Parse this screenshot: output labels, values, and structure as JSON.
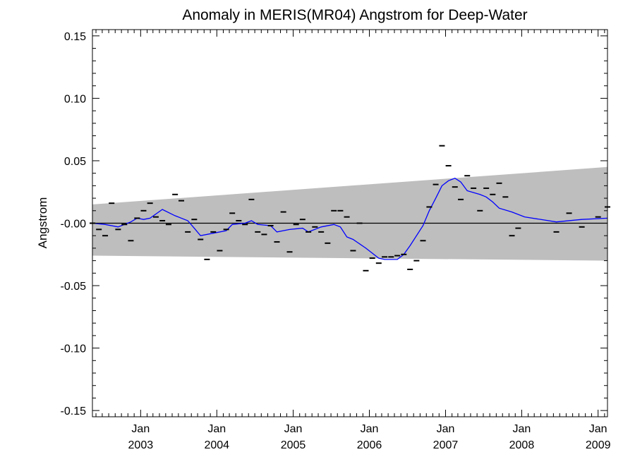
{
  "chart_data": {
    "type": "line",
    "title": "Anomaly in MERIS(MR04) Angstrom for Deep-Water",
    "xlabel": "",
    "ylabel": "Angstrom",
    "xlim": [
      "2002-05-15",
      "2009-02-15"
    ],
    "ylim": [
      -0.155,
      0.155
    ],
    "y_ticks": [
      0.15,
      0.1,
      0.05,
      0.0,
      -0.05,
      -0.1,
      -0.15
    ],
    "y_tick_labels": [
      "0.15",
      "0.10",
      "0.05",
      "-0.00",
      "-0.05",
      "-0.10",
      "-0.15"
    ],
    "x_ticks": [
      {
        "date": "2003-01-01",
        "month": "Jan",
        "year": "2003"
      },
      {
        "date": "2004-01-01",
        "month": "Jan",
        "year": "2004"
      },
      {
        "date": "2005-01-01",
        "month": "Jan",
        "year": "2005"
      },
      {
        "date": "2006-01-01",
        "month": "Jan",
        "year": "2006"
      },
      {
        "date": "2007-01-01",
        "month": "Jan",
        "year": "2007"
      },
      {
        "date": "2008-01-01",
        "month": "Jan",
        "year": "2008"
      },
      {
        "date": "2009-01-01",
        "month": "Jan",
        "year": "2009"
      }
    ],
    "grid": false,
    "zero_line": true,
    "uncertainty_band": {
      "color": "#bebebe",
      "start": {
        "date": "2002-05-15",
        "upper": 0.015,
        "lower": -0.026
      },
      "end": {
        "date": "2009-02-15",
        "upper": 0.045,
        "lower": -0.03
      }
    },
    "series": [
      {
        "kind": "monthly_markers",
        "color": "#000000",
        "points": [
          {
            "x": "2002-05-15",
            "y": 0.0
          },
          {
            "x": "2002-06-15",
            "y": -0.005
          },
          {
            "x": "2002-07-15",
            "y": -0.01
          },
          {
            "x": "2002-08-15",
            "y": 0.016
          },
          {
            "x": "2002-09-15",
            "y": -0.005
          },
          {
            "x": "2002-10-15",
            "y": -0.001
          },
          {
            "x": "2002-11-15",
            "y": -0.014
          },
          {
            "x": "2002-12-15",
            "y": 0.004
          },
          {
            "x": "2003-01-15",
            "y": 0.01
          },
          {
            "x": "2003-02-15",
            "y": 0.016
          },
          {
            "x": "2003-03-15",
            "y": 0.005
          },
          {
            "x": "2003-04-15",
            "y": 0.002
          },
          {
            "x": "2003-05-15",
            "y": -0.001
          },
          {
            "x": "2003-06-15",
            "y": 0.023
          },
          {
            "x": "2003-07-15",
            "y": 0.018
          },
          {
            "x": "2003-08-15",
            "y": -0.007
          },
          {
            "x": "2003-09-15",
            "y": 0.003
          },
          {
            "x": "2003-10-15",
            "y": -0.013
          },
          {
            "x": "2003-11-15",
            "y": -0.029
          },
          {
            "x": "2003-12-15",
            "y": -0.007
          },
          {
            "x": "2004-01-15",
            "y": -0.022
          },
          {
            "x": "2004-02-15",
            "y": -0.005
          },
          {
            "x": "2004-03-15",
            "y": 0.008
          },
          {
            "x": "2004-04-15",
            "y": 0.002
          },
          {
            "x": "2004-05-15",
            "y": -0.001
          },
          {
            "x": "2004-06-15",
            "y": 0.019
          },
          {
            "x": "2004-07-15",
            "y": -0.007
          },
          {
            "x": "2004-08-15",
            "y": -0.009
          },
          {
            "x": "2004-09-15",
            "y": -0.002
          },
          {
            "x": "2004-10-15",
            "y": -0.015
          },
          {
            "x": "2004-11-15",
            "y": 0.009
          },
          {
            "x": "2004-12-15",
            "y": -0.023
          },
          {
            "x": "2005-01-15",
            "y": -0.001
          },
          {
            "x": "2005-02-15",
            "y": 0.003
          },
          {
            "x": "2005-03-15",
            "y": -0.007
          },
          {
            "x": "2005-04-15",
            "y": -0.003
          },
          {
            "x": "2005-05-15",
            "y": -0.007
          },
          {
            "x": "2005-06-15",
            "y": -0.016
          },
          {
            "x": "2005-07-15",
            "y": 0.01
          },
          {
            "x": "2005-08-15",
            "y": 0.01
          },
          {
            "x": "2005-09-15",
            "y": 0.005
          },
          {
            "x": "2005-10-15",
            "y": -0.022
          },
          {
            "x": "2005-11-15",
            "y": 0.0
          },
          {
            "x": "2005-12-15",
            "y": -0.038
          },
          {
            "x": "2006-01-15",
            "y": -0.028
          },
          {
            "x": "2006-02-15",
            "y": -0.032
          },
          {
            "x": "2006-03-15",
            "y": -0.027
          },
          {
            "x": "2006-04-15",
            "y": -0.027
          },
          {
            "x": "2006-05-15",
            "y": -0.026
          },
          {
            "x": "2006-06-15",
            "y": -0.025
          },
          {
            "x": "2006-07-15",
            "y": -0.037
          },
          {
            "x": "2006-08-15",
            "y": -0.03
          },
          {
            "x": "2006-09-15",
            "y": -0.014
          },
          {
            "x": "2006-10-15",
            "y": 0.013
          },
          {
            "x": "2006-11-15",
            "y": 0.031
          },
          {
            "x": "2006-12-15",
            "y": 0.062
          },
          {
            "x": "2007-01-15",
            "y": 0.046
          },
          {
            "x": "2007-02-15",
            "y": 0.029
          },
          {
            "x": "2007-03-15",
            "y": 0.019
          },
          {
            "x": "2007-04-15",
            "y": 0.038
          },
          {
            "x": "2007-05-15",
            "y": 0.028
          },
          {
            "x": "2007-06-15",
            "y": 0.01
          },
          {
            "x": "2007-07-15",
            "y": 0.028
          },
          {
            "x": "2007-08-15",
            "y": 0.023
          },
          {
            "x": "2007-09-15",
            "y": 0.032
          },
          {
            "x": "2007-10-15",
            "y": 0.021
          },
          {
            "x": "2007-11-15",
            "y": -0.01
          },
          {
            "x": "2007-12-15",
            "y": -0.004
          },
          {
            "x": "2008-06-15",
            "y": -0.007
          },
          {
            "x": "2008-08-15",
            "y": 0.008
          },
          {
            "x": "2008-10-15",
            "y": -0.003
          },
          {
            "x": "2009-01-01",
            "y": 0.005
          },
          {
            "x": "2009-02-15",
            "y": 0.013
          }
        ]
      },
      {
        "kind": "smoothed_line",
        "color": "#0000ff",
        "points": [
          {
            "x": "2002-05-15",
            "y": -0.0
          },
          {
            "x": "2002-07-15",
            "y": -0.001
          },
          {
            "x": "2002-09-15",
            "y": -0.003
          },
          {
            "x": "2002-11-15",
            "y": 0.001
          },
          {
            "x": "2002-12-15",
            "y": 0.004
          },
          {
            "x": "2003-01-15",
            "y": 0.003
          },
          {
            "x": "2003-02-15",
            "y": 0.004
          },
          {
            "x": "2003-04-15",
            "y": 0.011
          },
          {
            "x": "2003-06-15",
            "y": 0.006
          },
          {
            "x": "2003-08-15",
            "y": 0.002
          },
          {
            "x": "2003-09-15",
            "y": -0.004
          },
          {
            "x": "2003-10-15",
            "y": -0.01
          },
          {
            "x": "2003-12-15",
            "y": -0.008
          },
          {
            "x": "2004-02-15",
            "y": -0.006
          },
          {
            "x": "2004-03-15",
            "y": -0.001
          },
          {
            "x": "2004-05-15",
            "y": 0.0
          },
          {
            "x": "2004-06-15",
            "y": 0.002
          },
          {
            "x": "2004-07-15",
            "y": -0.001
          },
          {
            "x": "2004-09-15",
            "y": -0.002
          },
          {
            "x": "2004-10-15",
            "y": -0.007
          },
          {
            "x": "2004-12-15",
            "y": -0.005
          },
          {
            "x": "2005-02-15",
            "y": -0.004
          },
          {
            "x": "2005-03-15",
            "y": -0.007
          },
          {
            "x": "2005-05-15",
            "y": -0.003
          },
          {
            "x": "2005-07-15",
            "y": -0.001
          },
          {
            "x": "2005-08-15",
            "y": -0.003
          },
          {
            "x": "2005-09-15",
            "y": -0.011
          },
          {
            "x": "2005-10-15",
            "y": -0.013
          },
          {
            "x": "2005-12-15",
            "y": -0.02
          },
          {
            "x": "2006-02-15",
            "y": -0.028
          },
          {
            "x": "2006-03-15",
            "y": -0.029
          },
          {
            "x": "2006-05-15",
            "y": -0.029
          },
          {
            "x": "2006-06-15",
            "y": -0.025
          },
          {
            "x": "2006-07-15",
            "y": -0.018
          },
          {
            "x": "2006-09-15",
            "y": -0.002
          },
          {
            "x": "2006-10-15",
            "y": 0.01
          },
          {
            "x": "2006-11-15",
            "y": 0.02
          },
          {
            "x": "2006-12-15",
            "y": 0.03
          },
          {
            "x": "2007-01-15",
            "y": 0.034
          },
          {
            "x": "2007-02-15",
            "y": 0.036
          },
          {
            "x": "2007-03-15",
            "y": 0.033
          },
          {
            "x": "2007-04-15",
            "y": 0.026
          },
          {
            "x": "2007-06-15",
            "y": 0.023
          },
          {
            "x": "2007-07-15",
            "y": 0.021
          },
          {
            "x": "2007-08-15",
            "y": 0.017
          },
          {
            "x": "2007-09-15",
            "y": 0.012
          },
          {
            "x": "2007-11-15",
            "y": 0.009
          },
          {
            "x": "2008-01-15",
            "y": 0.005
          },
          {
            "x": "2008-06-15",
            "y": 0.001
          },
          {
            "x": "2008-10-15",
            "y": 0.003
          },
          {
            "x": "2009-02-15",
            "y": 0.004
          }
        ]
      }
    ]
  }
}
